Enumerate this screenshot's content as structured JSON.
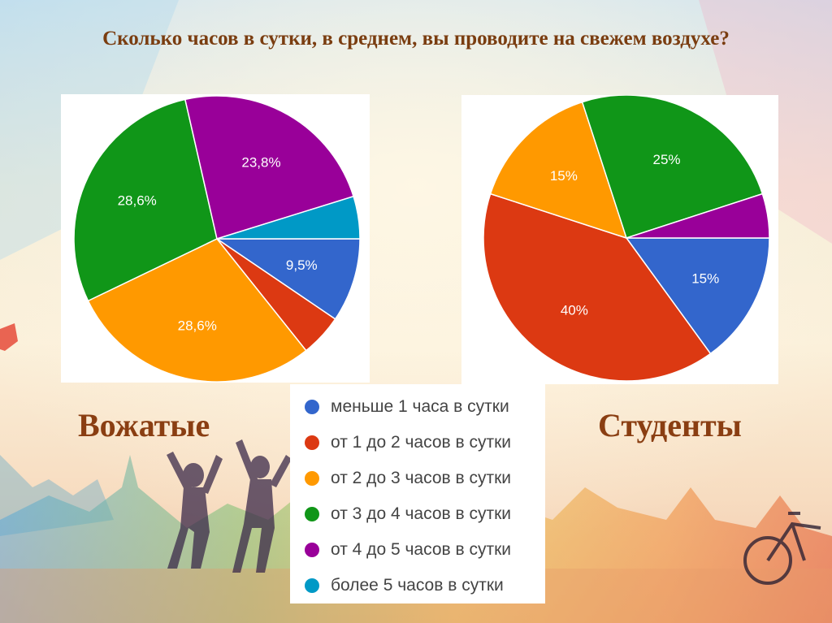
{
  "title": "Сколько часов в сутки, в среднем, вы проводите на свежем воздухе?",
  "legend": {
    "items": [
      {
        "label": "меньше 1 часа в сутки",
        "color": "#3366cc"
      },
      {
        "label": "от 1 до 2 часов в сутки",
        "color": "#dc3912"
      },
      {
        "label": "от 2 до 3 часов в сутки",
        "color": "#ff9900"
      },
      {
        "label": "от 3 до 4 часов в сутки",
        "color": "#109618"
      },
      {
        "label": "от 4 до 5 часов в сутки",
        "color": "#990099"
      },
      {
        "label": "более 5 часов в сутки",
        "color": "#0099c6"
      }
    ]
  },
  "chart_data": [
    {
      "type": "pie",
      "group_label": "Вожатые",
      "categories": [
        "меньше 1 часа в сутки",
        "от 1 до 2 часов в сутки",
        "от 2 до 3 часов в сутки",
        "от 3 до 4 часов в сутки",
        "от 4 до 5 часов в сутки",
        "более 5 часов в сутки"
      ],
      "values": [
        9.5,
        4.8,
        28.6,
        28.6,
        23.8,
        4.8
      ],
      "data_labels": [
        "9,5%",
        "",
        "28,6%",
        "28,6%",
        "23,8%",
        ""
      ],
      "colors": [
        "#3366cc",
        "#dc3912",
        "#ff9900",
        "#109618",
        "#990099",
        "#0099c6"
      ]
    },
    {
      "type": "pie",
      "group_label": "Студенты",
      "categories": [
        "меньше 1 часа в сутки",
        "от 1 до 2 часов в сутки",
        "от 2 до 3 часов в сутки",
        "от 3 до 4 часов в сутки",
        "от 4 до 5 часов в сутки",
        "более 5 часов в сутки"
      ],
      "values": [
        15,
        40,
        15,
        25,
        5,
        0
      ],
      "data_labels": [
        "15%",
        "40%",
        "15%",
        "25%",
        "",
        ""
      ],
      "colors": [
        "#3366cc",
        "#dc3912",
        "#ff9900",
        "#109618",
        "#990099",
        "#0099c6"
      ]
    }
  ]
}
